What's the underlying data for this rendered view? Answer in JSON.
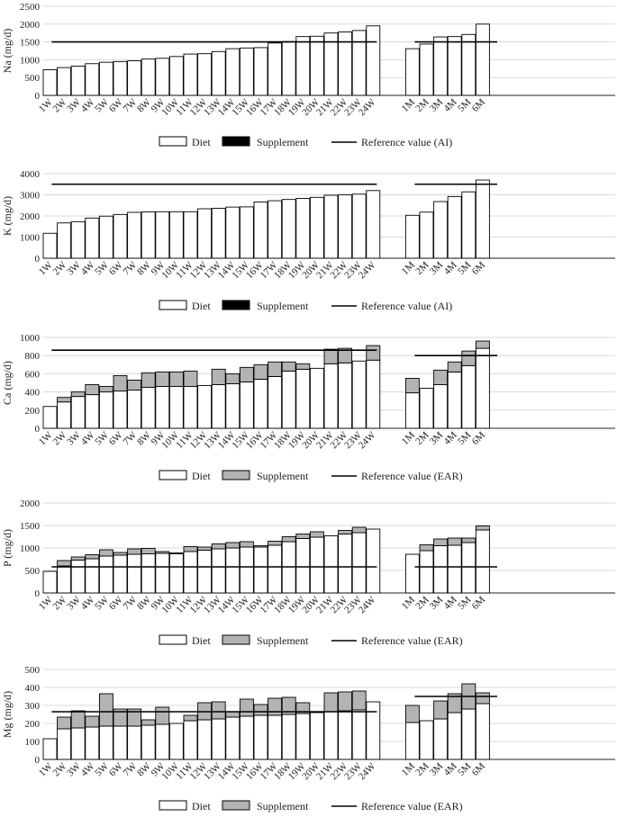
{
  "colors": {
    "diet": "#ffffff",
    "supplement_dark": "#000000",
    "supplement_gray": "#b3b3b3",
    "grid": "#d9d9d9",
    "axis": "#222222",
    "reference": "#000000"
  },
  "chart_data": [
    {
      "type": "bar",
      "stacked": true,
      "ylabel": "Na (mg/d)",
      "ylim": [
        0,
        2500
      ],
      "yticks": [
        0,
        500,
        1000,
        1500,
        2000,
        2500
      ],
      "grid": true,
      "supplement_style": "dark",
      "categories": [
        "1W",
        "2W",
        "3W",
        "4W",
        "5W",
        "6W",
        "7W",
        "8W",
        "9W",
        "10W",
        "11W",
        "12W",
        "13W",
        "14W",
        "15W",
        "16W",
        "17W",
        "18W",
        "19W",
        "20W",
        "21W",
        "22W",
        "23W",
        "24W",
        "1M",
        "2M",
        "3M",
        "4M",
        "5M",
        "6M"
      ],
      "series": [
        {
          "name": "Diet",
          "values": [
            720,
            780,
            820,
            890,
            930,
            950,
            970,
            1020,
            1040,
            1090,
            1160,
            1170,
            1230,
            1310,
            1330,
            1340,
            1470,
            1510,
            1650,
            1660,
            1750,
            1780,
            1820,
            1950,
            1310,
            1440,
            1640,
            1650,
            1710,
            2000
          ]
        },
        {
          "name": "Supplement",
          "values": [
            0,
            0,
            0,
            0,
            0,
            0,
            0,
            0,
            0,
            0,
            0,
            0,
            0,
            0,
            0,
            0,
            0,
            0,
            0,
            0,
            0,
            0,
            0,
            0,
            0,
            0,
            0,
            0,
            0,
            0
          ]
        }
      ],
      "reference": {
        "name": "Reference value (AI)",
        "weeks": 1500,
        "months": 1500
      },
      "legend": [
        "Diet",
        "Supplement",
        "Reference value (AI)"
      ]
    },
    {
      "type": "bar",
      "stacked": true,
      "ylabel": "K (mg/d)",
      "ylim": [
        0,
        4000
      ],
      "yticks": [
        0,
        1000,
        2000,
        3000,
        4000
      ],
      "grid": true,
      "supplement_style": "dark",
      "categories": [
        "1W",
        "2W",
        "3W",
        "4W",
        "5W",
        "6W",
        "7W",
        "8W",
        "9W",
        "10W",
        "11W",
        "12W",
        "13W",
        "14W",
        "15W",
        "16W",
        "17W",
        "18W",
        "19W",
        "20W",
        "21W",
        "22W",
        "23W",
        "24W",
        "1M",
        "2M",
        "3M",
        "4M",
        "5M",
        "6M"
      ],
      "series": [
        {
          "name": "Diet",
          "values": [
            1180,
            1670,
            1730,
            1900,
            1990,
            2070,
            2170,
            2190,
            2200,
            2200,
            2200,
            2340,
            2360,
            2420,
            2430,
            2660,
            2720,
            2780,
            2830,
            2880,
            2980,
            3000,
            3030,
            3200,
            2030,
            2180,
            2680,
            2920,
            3140,
            3700
          ]
        },
        {
          "name": "Supplement",
          "values": [
            0,
            0,
            0,
            0,
            0,
            0,
            0,
            0,
            0,
            0,
            0,
            0,
            0,
            0,
            0,
            0,
            0,
            0,
            0,
            0,
            0,
            0,
            0,
            0,
            0,
            0,
            0,
            0,
            0,
            0
          ]
        }
      ],
      "reference": {
        "name": "Reference value (AI)",
        "weeks": 3500,
        "months": 3500
      },
      "legend": [
        "Diet",
        "Supplement",
        "Reference value (AI)"
      ]
    },
    {
      "type": "bar",
      "stacked": true,
      "ylabel": "Ca (mg/d)",
      "ylim": [
        0,
        1000
      ],
      "yticks": [
        0,
        200,
        400,
        600,
        800,
        1000
      ],
      "grid": true,
      "supplement_style": "gray",
      "categories": [
        "1W",
        "2W",
        "3W",
        "4W",
        "5W",
        "6W",
        "7W",
        "8W",
        "9W",
        "10W",
        "11W",
        "12W",
        "13W",
        "14W",
        "15W",
        "16W",
        "17W",
        "18W",
        "19W",
        "20W",
        "21W",
        "22W",
        "23W",
        "24W",
        "1M",
        "2M",
        "3M",
        "4M",
        "5M",
        "6M"
      ],
      "series": [
        {
          "name": "Diet",
          "values": [
            240,
            290,
            350,
            370,
            400,
            410,
            420,
            450,
            460,
            460,
            460,
            470,
            480,
            490,
            510,
            540,
            570,
            630,
            650,
            660,
            710,
            720,
            740,
            750,
            390,
            440,
            480,
            620,
            690,
            880
          ]
        },
        {
          "name": "Supplement",
          "values": [
            0,
            50,
            50,
            110,
            60,
            170,
            110,
            160,
            160,
            160,
            170,
            0,
            170,
            110,
            160,
            160,
            160,
            100,
            60,
            0,
            160,
            160,
            0,
            160,
            160,
            0,
            160,
            110,
            160,
            80
          ]
        }
      ],
      "reference": {
        "name": "Reference value (EAR)",
        "weeks": 860,
        "months": 800
      },
      "legend": [
        "Diet",
        "Supplement",
        "Reference value (EAR)"
      ]
    },
    {
      "type": "bar",
      "stacked": true,
      "ylabel": "P (mg/d)",
      "ylim": [
        0,
        2000
      ],
      "yticks": [
        0,
        500,
        1000,
        1500,
        2000
      ],
      "grid": true,
      "supplement_style": "gray",
      "categories": [
        "1W",
        "2W",
        "3W",
        "4W",
        "5W",
        "6W",
        "7W",
        "8W",
        "9W",
        "10W",
        "11W",
        "12W",
        "13W",
        "14W",
        "15W",
        "16W",
        "17W",
        "18W",
        "19W",
        "20W",
        "21W",
        "22W",
        "23W",
        "24W",
        "1M",
        "2M",
        "3M",
        "4M",
        "5M",
        "6M"
      ],
      "series": [
        {
          "name": "Diet",
          "values": [
            480,
            600,
            730,
            760,
            820,
            840,
            860,
            870,
            880,
            870,
            920,
            950,
            980,
            1000,
            1020,
            1020,
            1060,
            1140,
            1210,
            1240,
            1270,
            1310,
            1340,
            1420,
            860,
            940,
            1050,
            1060,
            1120,
            1400
          ]
        },
        {
          "name": "Supplement",
          "values": [
            0,
            120,
            70,
            90,
            140,
            60,
            120,
            120,
            40,
            20,
            110,
            70,
            110,
            120,
            120,
            30,
            90,
            110,
            100,
            120,
            0,
            80,
            120,
            0,
            0,
            130,
            150,
            160,
            100,
            90
          ]
        }
      ],
      "reference": {
        "name": "Reference value (EAR)",
        "weeks": 580,
        "months": 580
      },
      "legend": [
        "Diet",
        "Supplement",
        "Reference value (EAR)"
      ]
    },
    {
      "type": "bar",
      "stacked": true,
      "ylabel": "Mg (mg/d)",
      "ylim": [
        0,
        500
      ],
      "yticks": [
        0,
        100,
        200,
        300,
        400,
        500
      ],
      "grid": true,
      "supplement_style": "gray",
      "categories": [
        "1W",
        "2W",
        "3W",
        "4W",
        "5W",
        "6W",
        "7W",
        "8W",
        "9W",
        "10W",
        "11W",
        "12W",
        "13W",
        "14W",
        "15W",
        "16W",
        "17W",
        "18W",
        "19W",
        "20W",
        "21W",
        "22W",
        "23W",
        "24W",
        "1M",
        "2M",
        "3M",
        "4M",
        "5M",
        "6M"
      ],
      "series": [
        {
          "name": "Diet",
          "values": [
            115,
            170,
            175,
            180,
            185,
            185,
            185,
            190,
            195,
            200,
            215,
            220,
            225,
            235,
            240,
            245,
            245,
            250,
            255,
            260,
            265,
            270,
            275,
            320,
            205,
            215,
            225,
            260,
            280,
            310
          ]
        },
        {
          "name": "Supplement",
          "values": [
            0,
            65,
            95,
            60,
            180,
            95,
            95,
            30,
            95,
            0,
            30,
            95,
            95,
            30,
            95,
            60,
            95,
            95,
            60,
            0,
            105,
            105,
            105,
            0,
            95,
            0,
            100,
            105,
            140,
            60
          ]
        }
      ],
      "reference": {
        "name": "Reference value (EAR)",
        "weeks": 265,
        "months": 350
      },
      "legend": [
        "Diet",
        "Supplement",
        "Reference value (EAR)"
      ]
    }
  ]
}
